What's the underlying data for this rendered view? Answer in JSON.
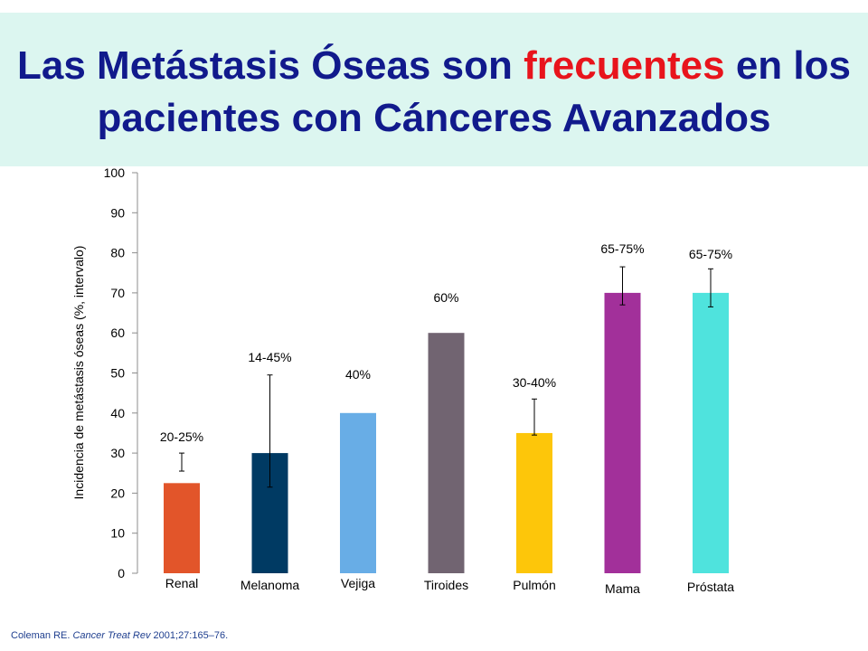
{
  "slide": {
    "title_part1": "Las Metástasis Óseas son ",
    "title_highlight": "frecuentes",
    "title_part2": " en los pacientes con Cánceres Avanzados",
    "colors": {
      "title": "#111a8c",
      "highlight": "#e8141c",
      "banner": "#dcf6f0"
    }
  },
  "citation": {
    "author": "Coleman RE. ",
    "journal": "Cancer Treat Rev",
    "ref": " 2001;27:165–76."
  },
  "chart_data": {
    "type": "bar",
    "ylabel": "Incidencia de metástasis óseas (%, intervalo)",
    "ylim": [
      0,
      100
    ],
    "yticks": [
      0,
      10,
      20,
      30,
      40,
      50,
      60,
      70,
      80,
      90,
      100
    ],
    "categories": [
      "Renal",
      "Melanoma",
      "Vejiga",
      "Tiroides",
      "Pulmón",
      "Mama",
      "Próstata"
    ],
    "values": [
      22.5,
      30,
      40,
      60,
      35,
      70,
      70
    ],
    "errors_low": [
      25.5,
      21.5,
      null,
      null,
      34.5,
      67,
      66.5
    ],
    "errors_high": [
      30,
      49.5,
      null,
      null,
      43.5,
      76.5,
      76
    ],
    "data_labels": [
      "20-25%",
      "14-45%",
      "40%",
      "60%",
      "30-40%",
      "65-75%",
      "65-75%"
    ],
    "colors": [
      "#e2552a",
      "#003a63",
      "#68ade6",
      "#716471",
      "#fdc60a",
      "#a2309a",
      "#4fe3dd"
    ],
    "grid": false
  }
}
